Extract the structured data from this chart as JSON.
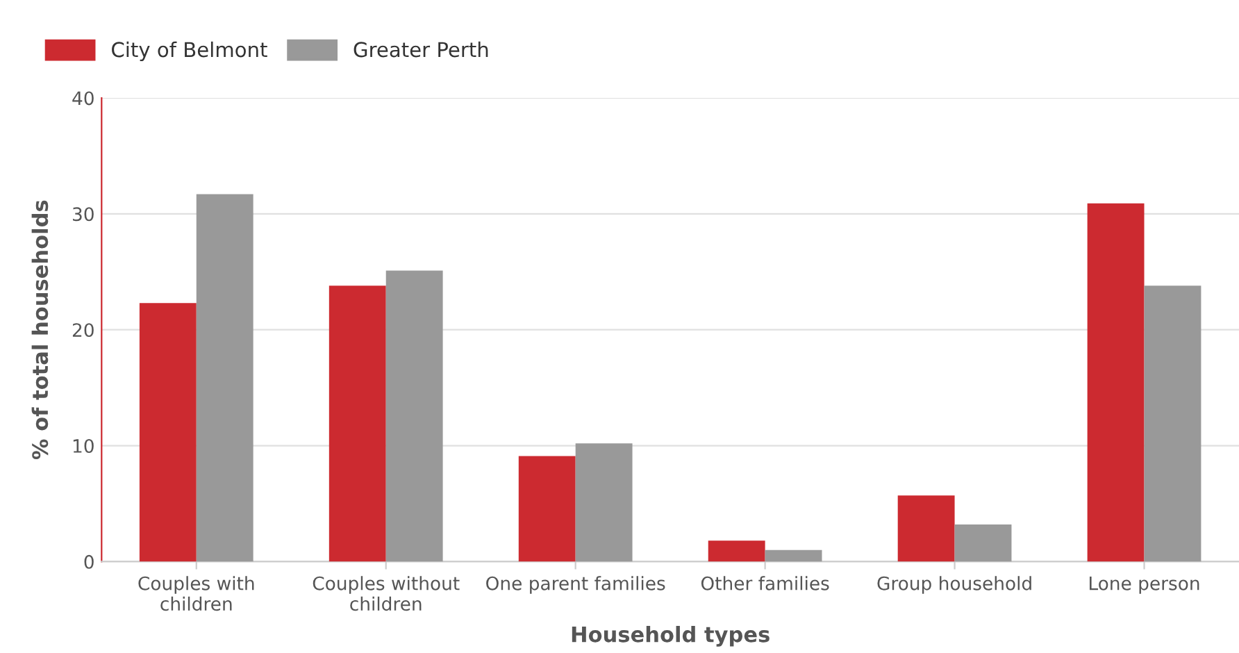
{
  "chart_data": {
    "type": "bar",
    "categories": [
      "Couples with\nchildren",
      "Couples without\nchildren",
      "One parent families",
      "Other families",
      "Group household",
      "Lone person"
    ],
    "series": [
      {
        "name": "City of Belmont",
        "color": "#cc2a30",
        "values": [
          22.3,
          23.8,
          9.1,
          1.8,
          5.7,
          30.9
        ]
      },
      {
        "name": "Greater Perth",
        "color": "#999999",
        "values": [
          31.7,
          25.1,
          10.2,
          1.0,
          3.2,
          23.8
        ]
      }
    ],
    "xlabel": "Household types",
    "ylabel": "% of total households",
    "ylim": [
      0,
      40
    ],
    "yticks": [
      0,
      10,
      20,
      30,
      40
    ],
    "grid": "y",
    "legend": "top left"
  }
}
